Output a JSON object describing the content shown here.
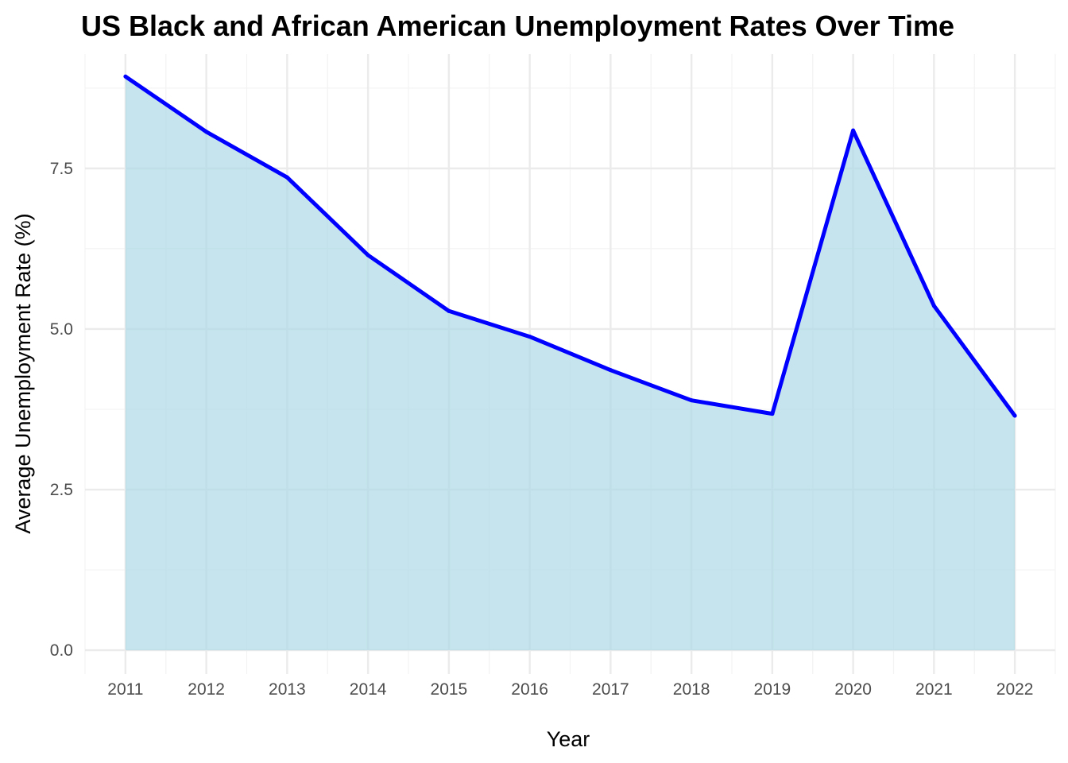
{
  "chart_data": {
    "type": "area",
    "title": "US Black and African American Unemployment Rates Over Time",
    "xlabel": "Year",
    "ylabel": "Average Unemployment Rate (%)",
    "x": [
      2011,
      2012,
      2013,
      2014,
      2015,
      2016,
      2017,
      2018,
      2019,
      2020,
      2021,
      2022
    ],
    "x_tick_labels": [
      "2011",
      "2012",
      "2013",
      "2014",
      "2015",
      "2016",
      "2017",
      "2018",
      "2019",
      "2020",
      "2021",
      "2022"
    ],
    "y_ticks": [
      0,
      2.5,
      5,
      7.5
    ],
    "y_tick_labels": [
      "0.0",
      "2.5",
      "5.0",
      "7.5"
    ],
    "series": [
      {
        "values": [
          8.93,
          8.07,
          7.36,
          6.15,
          5.28,
          4.88,
          4.36,
          3.89,
          3.68,
          8.09,
          5.36,
          3.65
        ]
      }
    ],
    "xlim": [
      2010.5,
      2022.5
    ],
    "ylim": [
      -0.37,
      9.28
    ],
    "grid": true,
    "legend": "none",
    "colors": {
      "line": "#0000ff",
      "fill": "#add8e6",
      "grid_major": "#ebebeb",
      "grid_minor": "#f3f3f3"
    }
  }
}
